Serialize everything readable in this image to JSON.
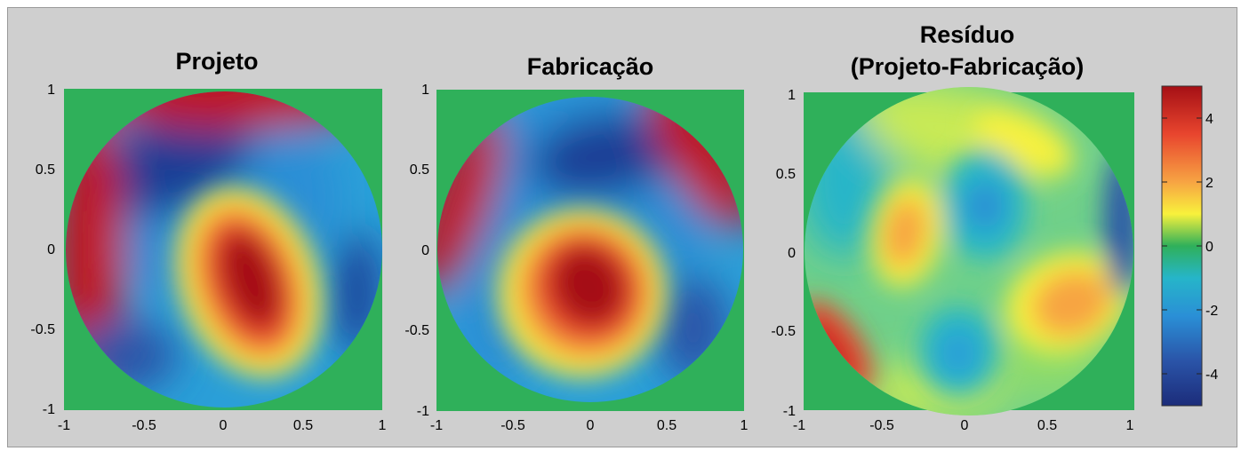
{
  "chart_data": [
    {
      "type": "heatmap",
      "title": "Projeto",
      "xlim": [
        -1,
        1
      ],
      "ylim": [
        -1,
        1
      ],
      "xticks": [
        "-1",
        "-0.5",
        "0",
        "0.5",
        "1"
      ],
      "yticks": [
        "1",
        "0.5",
        "0",
        "-0.5",
        "-1"
      ],
      "features": [
        {
          "kind": "max",
          "x": 0.18,
          "y": -0.2,
          "value": 5
        },
        {
          "kind": "min",
          "x": -0.35,
          "y": 0.55,
          "value": -4.5
        },
        {
          "kind": "edge-max",
          "x": -0.9,
          "y": 0.1,
          "value": 5
        },
        {
          "kind": "edge-max",
          "x": 0.1,
          "y": 0.9,
          "value": 5
        }
      ]
    },
    {
      "type": "heatmap",
      "title": "Fabricação",
      "xlim": [
        -1,
        1
      ],
      "ylim": [
        -1,
        1
      ],
      "xticks": [
        "-1",
        "-0.5",
        "0",
        "0.5",
        "1"
      ],
      "yticks": [
        "1",
        "0.5",
        "0",
        "-0.5",
        "-1"
      ],
      "features": [
        {
          "kind": "max",
          "x": 0.0,
          "y": -0.25,
          "value": 5
        },
        {
          "kind": "min",
          "x": -0.1,
          "y": 0.55,
          "value": -4.5
        },
        {
          "kind": "edge-max",
          "x": -0.85,
          "y": 0.4,
          "value": 5
        },
        {
          "kind": "edge-max",
          "x": 0.75,
          "y": 0.75,
          "value": 5
        }
      ]
    },
    {
      "type": "heatmap",
      "title": "Resíduo",
      "subtitle": "(Projeto-Fabricação)",
      "xlim": [
        -1,
        1
      ],
      "ylim": [
        -1,
        1
      ],
      "xticks": [
        "-1",
        "-0.5",
        "0",
        "0.5",
        "1"
      ],
      "yticks": [
        "1",
        "0.5",
        "0",
        "-0.5",
        "-1"
      ],
      "features": [
        {
          "kind": "max",
          "x": -0.45,
          "y": 0.1,
          "value": 2.5
        },
        {
          "kind": "max",
          "x": 0.6,
          "y": -0.3,
          "value": 2.5
        },
        {
          "kind": "max",
          "x": -0.85,
          "y": -0.6,
          "value": 4
        },
        {
          "kind": "max",
          "x": 0.35,
          "y": 0.75,
          "value": 1.5
        },
        {
          "kind": "min",
          "x": 0.1,
          "y": 0.3,
          "value": -3
        },
        {
          "kind": "min",
          "x": -0.05,
          "y": -0.6,
          "value": -2
        },
        {
          "kind": "min",
          "x": 0.95,
          "y": 0.15,
          "value": -3.5
        }
      ]
    }
  ],
  "colorbar": {
    "range": [
      -5,
      5
    ],
    "ticks": [
      "4",
      "2",
      "0",
      "-2",
      "-4"
    ],
    "tick_values": [
      4,
      2,
      0,
      -2,
      -4
    ]
  },
  "colors": {
    "background": "#cfcfcf",
    "outside_disk": "#2fb05a"
  }
}
